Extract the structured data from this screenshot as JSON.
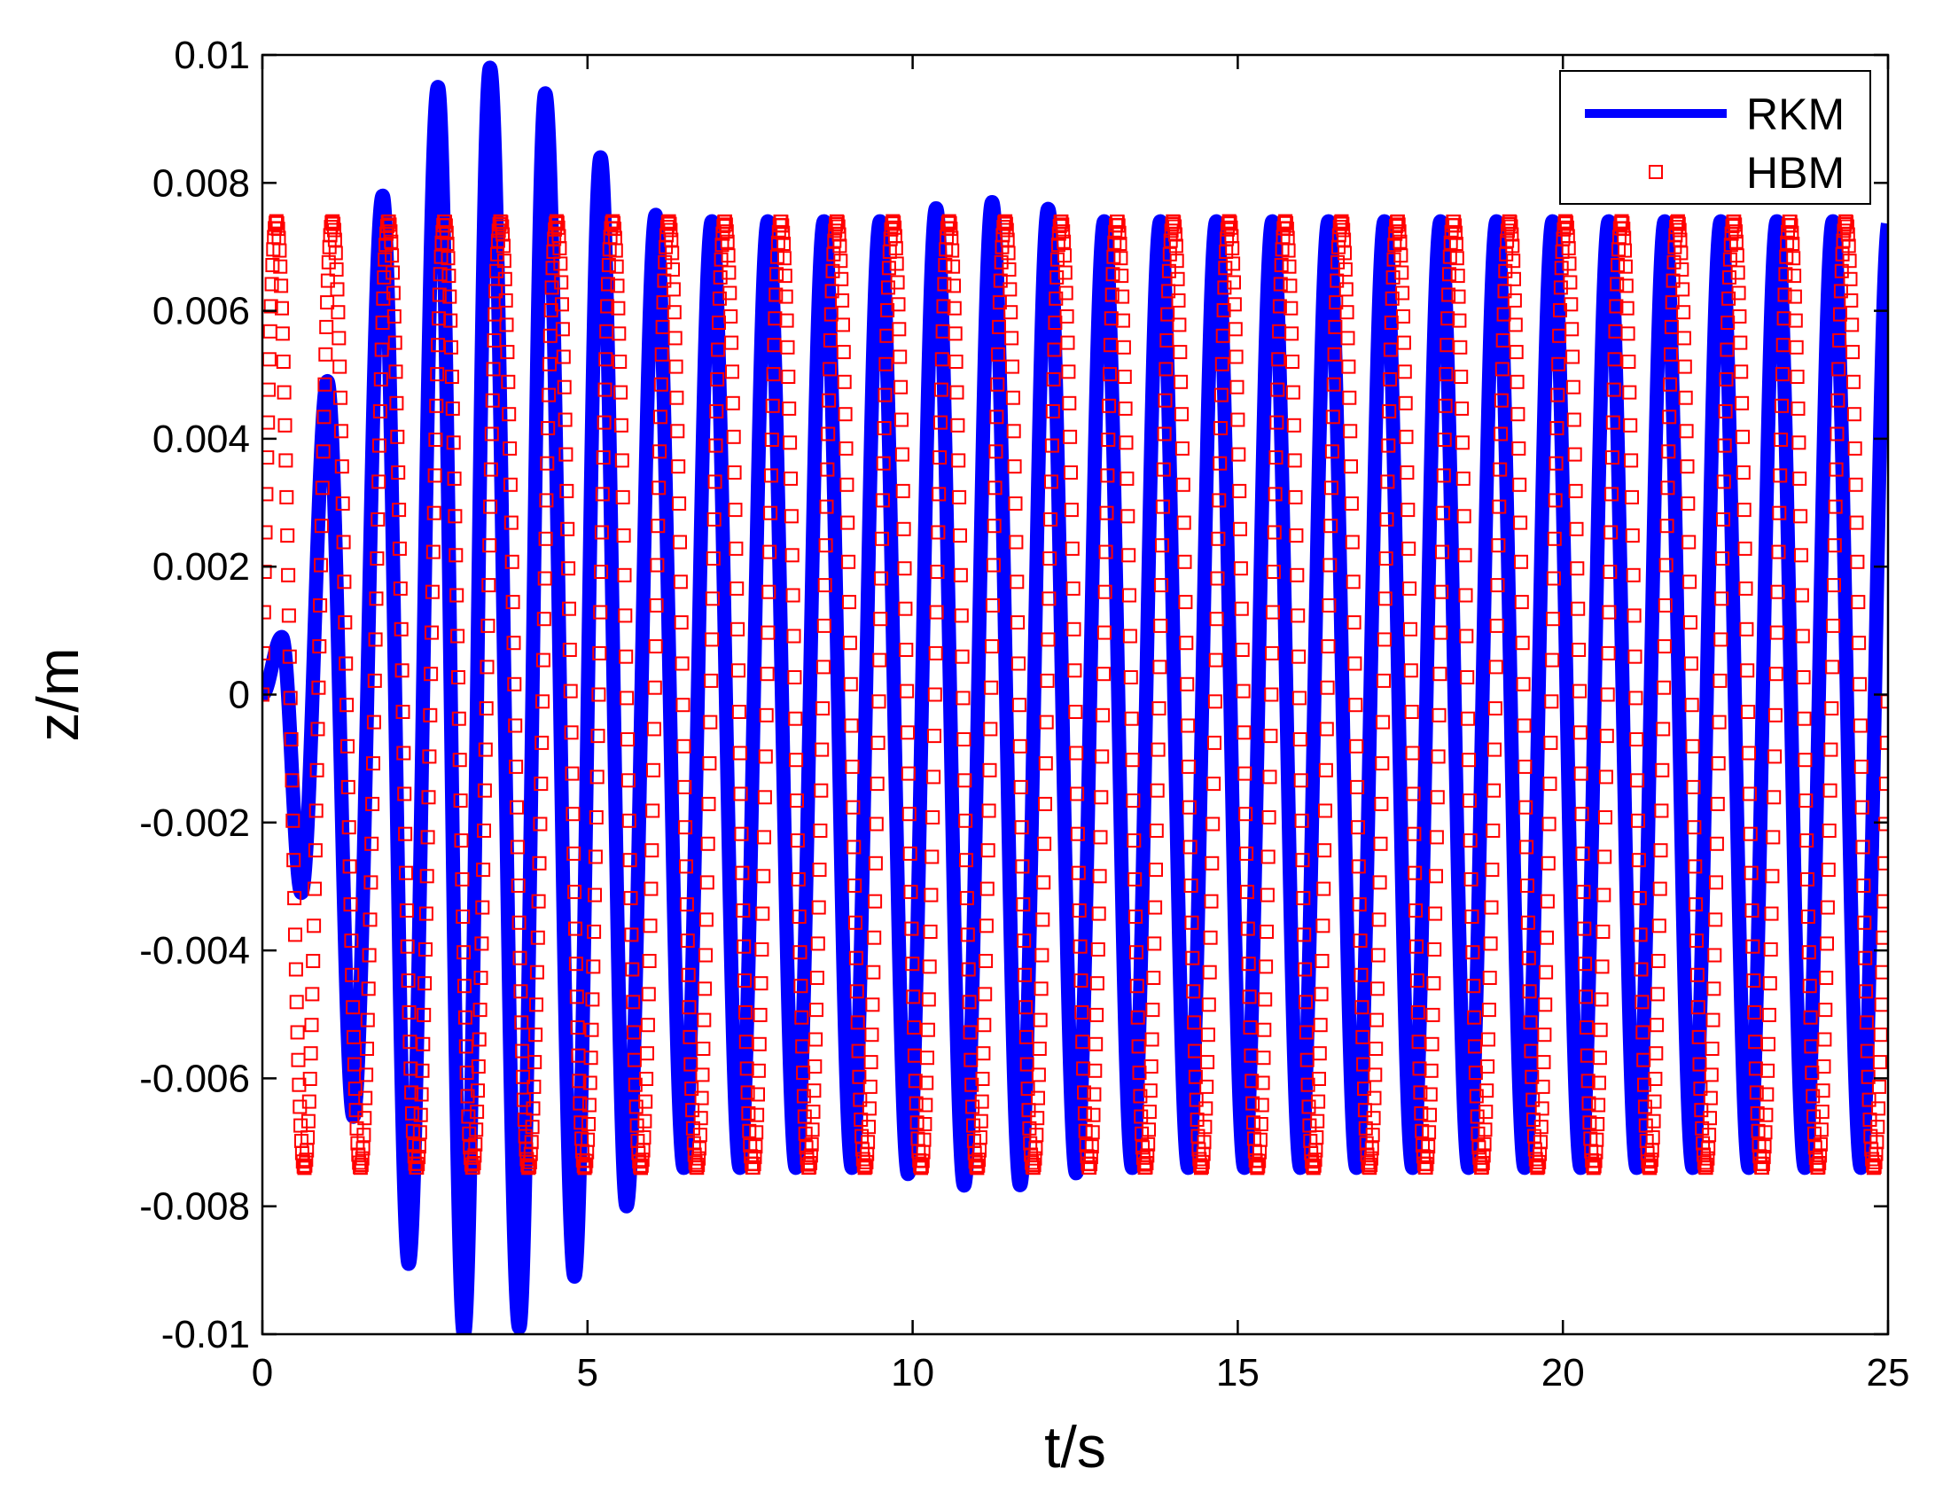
{
  "chart_data": {
    "type": "line",
    "title": "",
    "xlabel": "t/s",
    "ylabel": "z/m",
    "xlim": [
      0,
      25
    ],
    "ylim": [
      -0.01,
      0.01
    ],
    "xticks": [
      0,
      5,
      10,
      15,
      20,
      25
    ],
    "xtick_labels": [
      "0",
      "5",
      "10",
      "15",
      "20",
      "25"
    ],
    "yticks": [
      -0.01,
      -0.008,
      -0.006,
      -0.004,
      -0.002,
      0,
      0.002,
      0.004,
      0.006,
      0.008,
      0.01
    ],
    "ytick_labels": [
      "-0.01",
      "-0.008",
      "-0.006",
      "-0.004",
      "-0.002",
      "0",
      "0.002",
      "0.004",
      "0.006",
      "0.008",
      "0.01"
    ],
    "grid": false,
    "legend_position": "top-right",
    "series": [
      {
        "name": "RKM",
        "style": "thick solid line",
        "color": "#0000ff",
        "x": [
          0,
          0.3,
          0.6,
          1.0,
          1.4,
          1.85,
          2.25,
          2.7,
          3.1,
          3.5,
          3.95,
          4.35,
          4.8,
          5.2,
          5.6,
          6.05
        ],
        "y": [
          0,
          0.0009,
          -0.0031,
          0.0049,
          -0.0066,
          0.0078,
          -0.0089,
          0.0095,
          -0.01,
          0.0098,
          -0.0099,
          0.0094,
          -0.0091,
          0.0084,
          -0.008,
          0.0075
        ],
        "steady_state": {
          "amplitude": 0.0074,
          "period": 0.862,
          "phase_zero_crossing": 0.0,
          "beat_peak_near": {
            "x": [
              10.4,
              11.3,
              12.1
            ],
            "amplitude": 0.0077
          }
        }
      },
      {
        "name": "HBM",
        "style": "open square markers",
        "color": "#ff0000",
        "amplitude": 0.0074,
        "period": 0.862,
        "x_start": 0,
        "x_end": 25,
        "sample_step": 0.012
      }
    ]
  }
}
